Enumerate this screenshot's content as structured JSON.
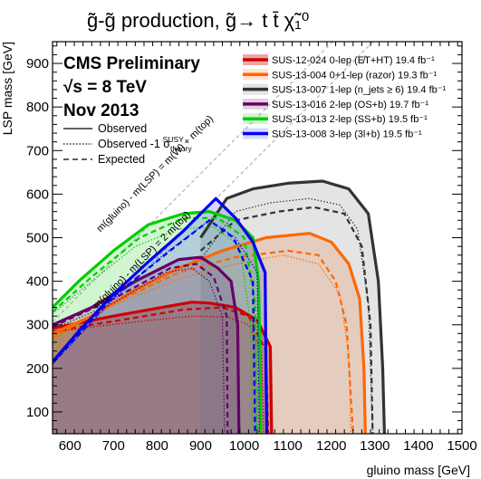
{
  "chart_data": {
    "type": "area",
    "title": "g̃-g̃ production, g̃→ t t̄ χ̃₁⁰",
    "xlabel": "gluino mass [GeV]",
    "ylabel": "LSP mass [GeV]",
    "xlim": [
      560,
      1500
    ],
    "ylim": [
      50,
      950
    ],
    "x_ticks": [
      600,
      700,
      800,
      900,
      1000,
      1100,
      1200,
      1300,
      1400,
      1500
    ],
    "y_ticks": [
      100,
      200,
      300,
      400,
      500,
      600,
      700,
      800,
      900
    ],
    "cms_label": "CMS Preliminary",
    "energy_label": "√s = 8 TeV",
    "date_label": "Nov 2013",
    "style_legend": [
      {
        "label": "Observed",
        "dash": "solid"
      },
      {
        "label": "Observed -1 σ",
        "sub": "theory",
        "sup": "SUSY",
        "dash": "dotted"
      },
      {
        "label": "Expected",
        "dash": "dashed"
      }
    ],
    "diagonal_labels": [
      {
        "text": "m(gluino) - m(LSP) = m(W) + m(top)",
        "x": 800,
        "y": 642
      },
      {
        "text": "m(gluino) - m(LSP) = 2 m(top)",
        "x": 770,
        "y": 444
      }
    ],
    "diagonal_lines": [
      {
        "name": "W+top",
        "offset": 253
      },
      {
        "name": "2top",
        "offset": 346
      }
    ],
    "series": [
      {
        "name": "SUS-12-024 0-lep (E̸T+HT) 19.4 fb⁻¹",
        "color": "#cc0000",
        "fill": "rgba(204,0,0,0.35)",
        "observed": [
          [
            560,
            292
          ],
          [
            600,
            300
          ],
          [
            700,
            320
          ],
          [
            800,
            338
          ],
          [
            880,
            352
          ],
          [
            920,
            350
          ],
          [
            980,
            340
          ],
          [
            1030,
            310
          ],
          [
            1060,
            250
          ],
          [
            1063,
            50
          ]
        ],
        "observed_minus": [
          [
            560,
            282
          ],
          [
            650,
            295
          ],
          [
            780,
            310
          ],
          [
            880,
            320
          ],
          [
            960,
            318
          ],
          [
            1010,
            300
          ],
          [
            1040,
            240
          ],
          [
            1045,
            50
          ]
        ],
        "expected": [
          [
            560,
            285
          ],
          [
            650,
            300
          ],
          [
            760,
            318
          ],
          [
            860,
            335
          ],
          [
            950,
            340
          ],
          [
            1010,
            320
          ],
          [
            1050,
            240
          ],
          [
            1055,
            50
          ]
        ]
      },
      {
        "name": "SUS-13-004 0+1-lep (razor) 19.3 fb⁻¹",
        "color": "#ff6600",
        "fill": "rgba(255,102,0,0.18)",
        "observed": [
          [
            560,
            280
          ],
          [
            650,
            320
          ],
          [
            750,
            380
          ],
          [
            850,
            430
          ],
          [
            950,
            470
          ],
          [
            1050,
            500
          ],
          [
            1150,
            510
          ],
          [
            1200,
            490
          ],
          [
            1240,
            440
          ],
          [
            1265,
            360
          ],
          [
            1275,
            200
          ],
          [
            1278,
            50
          ]
        ],
        "observed_minus": [
          [
            560,
            272
          ],
          [
            700,
            345
          ],
          [
            850,
            405
          ],
          [
            980,
            440
          ],
          [
            1090,
            460
          ],
          [
            1170,
            440
          ],
          [
            1220,
            370
          ],
          [
            1240,
            230
          ],
          [
            1245,
            50
          ]
        ],
        "expected": [
          [
            560,
            270
          ],
          [
            700,
            350
          ],
          [
            850,
            420
          ],
          [
            980,
            455
          ],
          [
            1100,
            470
          ],
          [
            1170,
            460
          ],
          [
            1210,
            400
          ],
          [
            1235,
            300
          ],
          [
            1250,
            50
          ]
        ]
      },
      {
        "name": "SUS-13-007 1-lep (n_jets ≥ 6) 19.4 fb⁻¹",
        "color": "#333333",
        "fill": "rgba(120,120,120,0.20)",
        "observed": [
          [
            900,
            500
          ],
          [
            960,
            590
          ],
          [
            1020,
            612
          ],
          [
            1100,
            625
          ],
          [
            1180,
            630
          ],
          [
            1240,
            612
          ],
          [
            1285,
            555
          ],
          [
            1308,
            400
          ],
          [
            1318,
            200
          ],
          [
            1322,
            50
          ]
        ],
        "observed_minus": [
          [
            900,
            450
          ],
          [
            980,
            560
          ],
          [
            1060,
            580
          ],
          [
            1150,
            590
          ],
          [
            1220,
            575
          ],
          [
            1260,
            520
          ],
          [
            1285,
            350
          ],
          [
            1295,
            50
          ]
        ],
        "expected": [
          [
            900,
            470
          ],
          [
            980,
            540
          ],
          [
            1080,
            560
          ],
          [
            1160,
            570
          ],
          [
            1230,
            555
          ],
          [
            1270,
            480
          ],
          [
            1290,
            300
          ],
          [
            1295,
            50
          ]
        ]
      },
      {
        "name": "SUS-13-016 2-lep (OS+b) 19.7 fb⁻¹",
        "color": "#660066",
        "fill": "rgba(102,0,102,0.18)",
        "observed": [
          [
            560,
            300
          ],
          [
            650,
            340
          ],
          [
            750,
            400
          ],
          [
            850,
            450
          ],
          [
            900,
            455
          ],
          [
            940,
            430
          ],
          [
            970,
            400
          ],
          [
            985,
            300
          ],
          [
            988,
            50
          ]
        ],
        "observed_minus": [
          [
            560,
            290
          ],
          [
            700,
            350
          ],
          [
            820,
            420
          ],
          [
            880,
            430
          ],
          [
            920,
            400
          ],
          [
            950,
            320
          ],
          [
            955,
            50
          ]
        ],
        "expected": [
          [
            560,
            295
          ],
          [
            700,
            360
          ],
          [
            830,
            430
          ],
          [
            890,
            440
          ],
          [
            930,
            410
          ],
          [
            960,
            320
          ],
          [
            962,
            50
          ]
        ]
      },
      {
        "name": "SUS-13-013 2-lep (SS+b) 19.5 fb⁻¹",
        "color": "#00cc00",
        "fill": "rgba(0,200,0,0.18)",
        "observed": [
          [
            560,
            340
          ],
          [
            620,
            400
          ],
          [
            700,
            470
          ],
          [
            780,
            530
          ],
          [
            860,
            555
          ],
          [
            920,
            560
          ],
          [
            980,
            540
          ],
          [
            1020,
            500
          ],
          [
            1033,
            400
          ],
          [
            1037,
            200
          ],
          [
            1038,
            50
          ]
        ],
        "observed_minus": [
          [
            560,
            325
          ],
          [
            650,
            400
          ],
          [
            750,
            480
          ],
          [
            850,
            520
          ],
          [
            930,
            525
          ],
          [
            990,
            480
          ],
          [
            1015,
            300
          ],
          [
            1018,
            50
          ]
        ],
        "expected": [
          [
            560,
            330
          ],
          [
            650,
            410
          ],
          [
            760,
            500
          ],
          [
            860,
            545
          ],
          [
            940,
            545
          ],
          [
            1000,
            500
          ],
          [
            1025,
            350
          ],
          [
            1028,
            50
          ]
        ]
      },
      {
        "name": "SUS-13-008 3-lep (3l+b) 19.5 fb⁻¹",
        "color": "#0000ee",
        "fill": "rgba(60,60,255,0.20)",
        "observed": [
          [
            560,
            215
          ],
          [
            620,
            285
          ],
          [
            700,
            370
          ],
          [
            780,
            445
          ],
          [
            860,
            515
          ],
          [
            900,
            555
          ],
          [
            935,
            590
          ],
          [
            980,
            545
          ],
          [
            1020,
            490
          ],
          [
            1048,
            420
          ],
          [
            1050,
            200
          ],
          [
            1052,
            50
          ]
        ],
        "observed_minus": [
          [
            560,
            210
          ],
          [
            700,
            360
          ],
          [
            820,
            465
          ],
          [
            920,
            540
          ],
          [
            980,
            500
          ],
          [
            1030,
            420
          ],
          [
            1035,
            50
          ]
        ],
        "expected": [
          [
            560,
            212
          ],
          [
            700,
            365
          ],
          [
            830,
            470
          ],
          [
            920,
            540
          ],
          [
            975,
            500
          ],
          [
            1020,
            400
          ],
          [
            1025,
            50
          ]
        ]
      }
    ]
  }
}
